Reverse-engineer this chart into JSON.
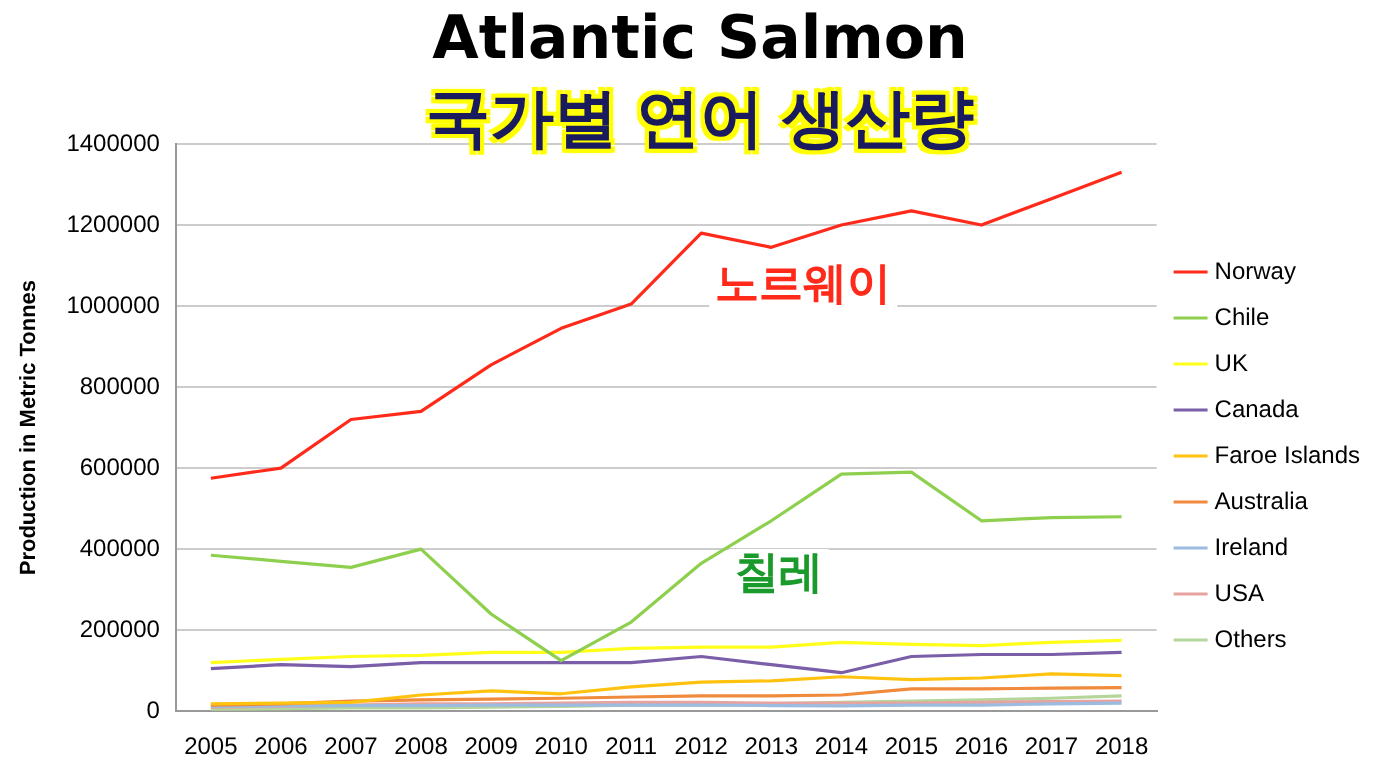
{
  "chart_data": {
    "type": "line",
    "title": "Atlantic Salmon",
    "subtitle": "국가별 연어 생산량",
    "ylabel": "Production in Metric Tonnes",
    "categories": [
      "2005",
      "2006",
      "2007",
      "2008",
      "2009",
      "2010",
      "2011",
      "2012",
      "2013",
      "2014",
      "2015",
      "2016",
      "2017",
      "2018"
    ],
    "series": [
      {
        "name": "Norway",
        "color": "#ff2a1a",
        "values": [
          575000,
          600000,
          720000,
          740000,
          855000,
          945000,
          1005000,
          1180000,
          1145000,
          1200000,
          1235000,
          1200000,
          1265000,
          1330000
        ]
      },
      {
        "name": "Chile",
        "color": "#8ed04e",
        "values": [
          385000,
          370000,
          355000,
          400000,
          240000,
          125000,
          220000,
          365000,
          470000,
          585000,
          590000,
          470000,
          478000,
          480000
        ]
      },
      {
        "name": "UK",
        "color": "#ffff1a",
        "values": [
          120000,
          128000,
          135000,
          138000,
          145000,
          145000,
          155000,
          158000,
          158000,
          170000,
          165000,
          162000,
          170000,
          175000
        ]
      },
      {
        "name": "Canada",
        "color": "#7a5ea8",
        "values": [
          105000,
          115000,
          110000,
          120000,
          120000,
          120000,
          120000,
          135000,
          115000,
          95000,
          135000,
          140000,
          140000,
          145000
        ]
      },
      {
        "name": "Faroe Islands",
        "color": "#ffc20e",
        "values": [
          18000,
          20000,
          22000,
          40000,
          50000,
          43000,
          60000,
          72000,
          75000,
          85000,
          78000,
          82000,
          92000,
          88000
        ]
      },
      {
        "name": "Australia",
        "color": "#f08a3c",
        "values": [
          15000,
          18000,
          25000,
          28000,
          30000,
          32000,
          35000,
          38000,
          38000,
          40000,
          55000,
          55000,
          57000,
          58000
        ]
      },
      {
        "name": "Ireland",
        "color": "#9bbbe0",
        "values": [
          12000,
          13000,
          14000,
          14000,
          15000,
          15000,
          15000,
          15000,
          14000,
          13000,
          15000,
          15000,
          18000,
          20000
        ]
      },
      {
        "name": "USA",
        "color": "#e6a3a0",
        "values": [
          10000,
          12000,
          15000,
          18000,
          18000,
          20000,
          22000,
          22000,
          20000,
          20000,
          20000,
          22000,
          24000,
          25000
        ]
      },
      {
        "name": "Others",
        "color": "#b5d69a",
        "values": [
          5000,
          6000,
          8000,
          8000,
          10000,
          12000,
          15000,
          15000,
          18000,
          22000,
          25000,
          28000,
          32000,
          38000
        ]
      }
    ],
    "annotations": [
      "노르웨이",
      "칠레"
    ],
    "ylim": [
      0,
      1400000
    ],
    "yticks": [
      0,
      200000,
      400000,
      600000,
      800000,
      1000000,
      1200000,
      1400000
    ],
    "grid": "y",
    "legend": "right",
    "marker": "none",
    "line_style": "solid"
  }
}
